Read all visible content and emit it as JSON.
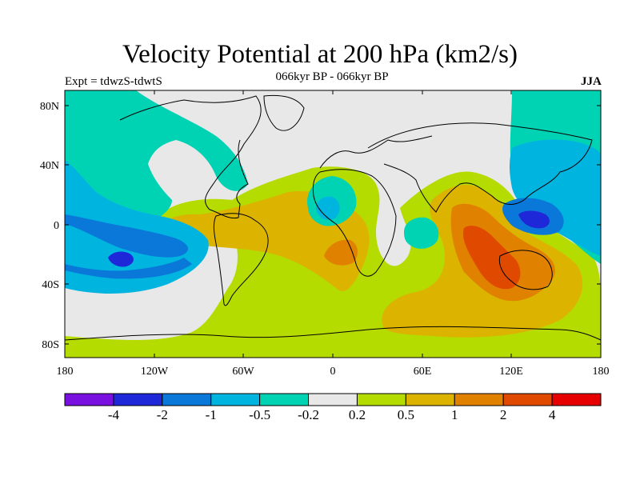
{
  "header": {
    "title": "Velocity Potential at 200 hPa (km2/s)",
    "subtitle": "066kyr BP - 066kyr BP",
    "experiment": "Expt = tdwzS-tdwtS",
    "season": "JJA"
  },
  "map": {
    "lat_ticks": [
      "80N",
      "40N",
      "0",
      "40S",
      "80S"
    ],
    "lon_ticks": [
      "180",
      "120W",
      "60W",
      "0",
      "60E",
      "120E",
      "180"
    ]
  },
  "colorbar": {
    "colors": [
      "#7a10e0",
      "#1e28d8",
      "#0a78d8",
      "#00b4e0",
      "#00d2b4",
      "#e8e8e8",
      "#b4dc00",
      "#dcb400",
      "#e08200",
      "#e04a00",
      "#e60000"
    ],
    "labels": [
      "-4",
      "-2",
      "-1",
      "-0.5",
      "-0.2",
      "0.2",
      "0.5",
      "1",
      "2",
      "4"
    ]
  }
}
